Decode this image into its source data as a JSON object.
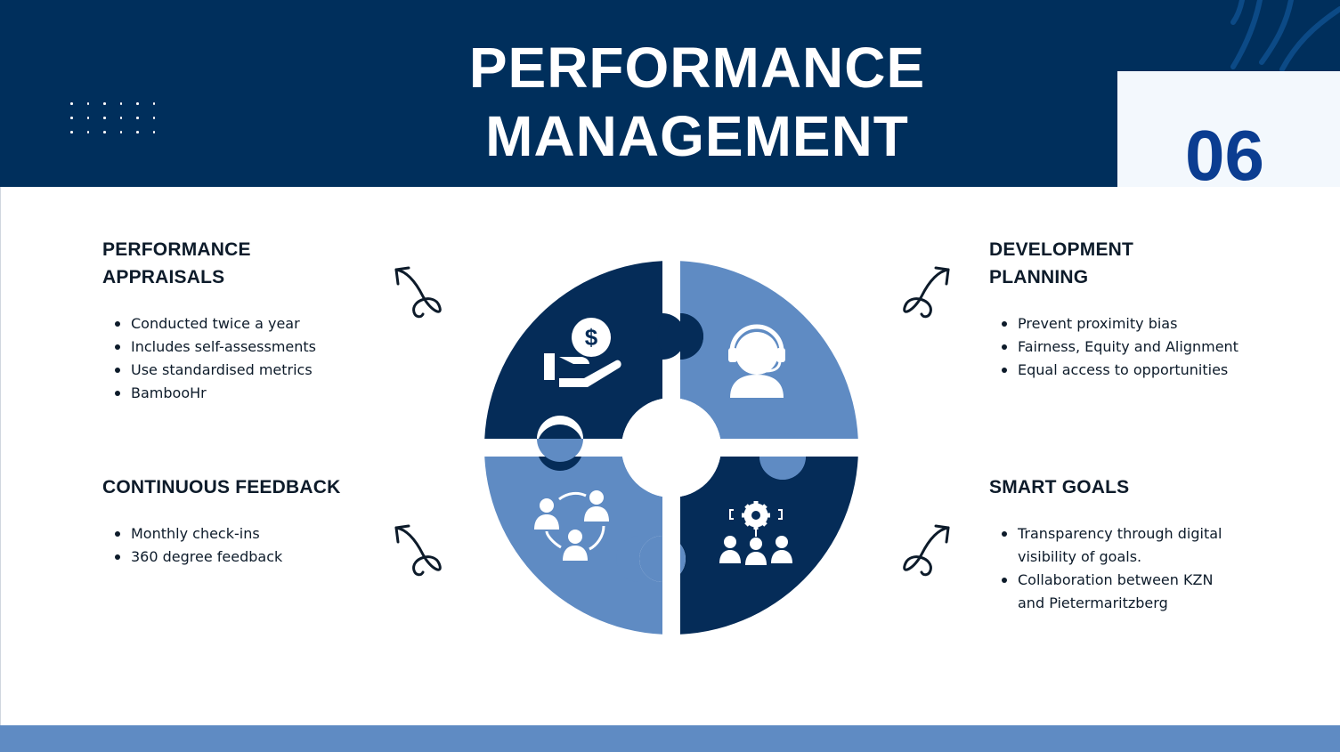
{
  "header": {
    "title_line1": "PERFORMANCE",
    "title_line2": "MANAGEMENT",
    "number": "06"
  },
  "sections": {
    "appraisals": {
      "title_line1": "PERFORMANCE",
      "title_line2": "APPRAISALS",
      "bullets": [
        "Conducted twice a year",
        "Includes self-assessments",
        "Use standardised metrics",
        "BambooHr"
      ]
    },
    "development": {
      "title_line1": "DEVELOPMENT",
      "title_line2": "PLANNING",
      "bullets": [
        "Prevent proximity bias",
        "Fairness, Equity and Alignment",
        "Equal access to opportunities"
      ]
    },
    "feedback": {
      "title_line1": "CONTINUOUS FEEDBACK",
      "bullets": [
        "Monthly check-ins",
        "360 degree feedback"
      ]
    },
    "goals": {
      "title_line1": "SMART GOALS",
      "bullets_line": [
        "Transparency through digital",
        "visibility of goals.",
        "Collaboration between KZN",
        "and Pietermaritzberg"
      ]
    }
  },
  "puzzle": {
    "icons": [
      "dollar-hand-icon",
      "headset-agent-icon",
      "team-cycle-icon",
      "gear-team-icon"
    ],
    "dollar_glyph": "$"
  },
  "colors": {
    "navy": "#002f5c",
    "dark_piece": "#052c58",
    "light_piece": "#5f8bc3",
    "number": "#0b3d91",
    "footer": "#5f8bc3"
  }
}
